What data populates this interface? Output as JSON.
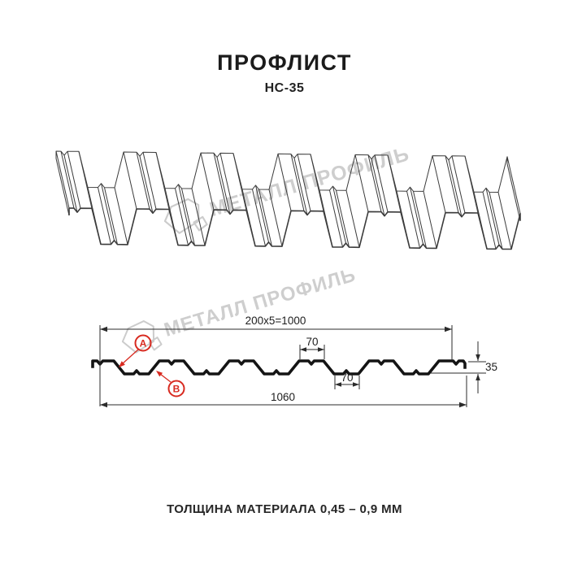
{
  "header": {
    "title": "ПРОФЛИСТ",
    "subtitle": "НС-35"
  },
  "watermark": {
    "brand_text": "МЕТАЛЛ ПРОФИЛЬ"
  },
  "dimensions": {
    "top_span": "200x5=1000",
    "rib_top_width": "70",
    "rib_bottom_width": "70",
    "profile_height": "35",
    "overall_width": "1060"
  },
  "markers": {
    "a": "A",
    "b": "B"
  },
  "footer": {
    "thickness_note": "ТОЛЩИНА МАТЕРИАЛА 0,45 – 0,9 ММ"
  },
  "colors": {
    "marker_red": "#d82a20",
    "line_dark": "#2b2b2b",
    "profile_black": "#141414",
    "watermark_gray": "#c3c3c3"
  }
}
